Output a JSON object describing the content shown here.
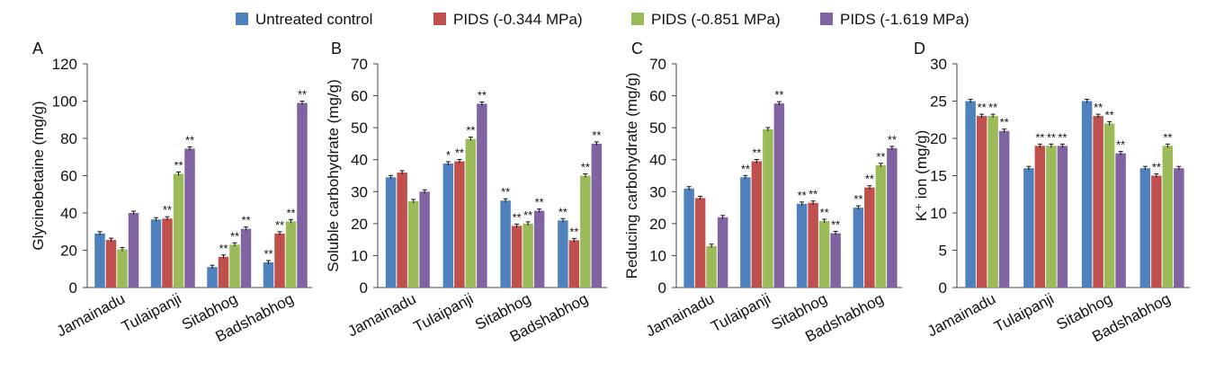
{
  "colors": [
    "#4f81bd",
    "#c0504d",
    "#9bbb59",
    "#8064a2"
  ],
  "legend": [
    "Untreated control",
    "PIDS (-0.344 MPa)",
    "PIDS (-0.851 MPa)",
    "PIDS (-1.619 MPa)"
  ],
  "chart_data": [
    {
      "type": "bar",
      "panel_label": "A",
      "ylabel": "Glycinebetaine (mg/g)",
      "ylim": [
        0,
        120
      ],
      "yticks": [
        0,
        20,
        40,
        60,
        80,
        100,
        120
      ],
      "categories": [
        "Jamainadu",
        "Tulaipanji",
        "Sitabhog",
        "Badshabhog"
      ],
      "series": [
        {
          "name": "Untreated control",
          "values": [
            29,
            36.5,
            11,
            13.5
          ]
        },
        {
          "name": "PIDS (-0.344 MPa)",
          "values": [
            25.5,
            37,
            16.5,
            29
          ]
        },
        {
          "name": "PIDS (-0.851 MPa)",
          "values": [
            20.5,
            61,
            23,
            35.5
          ]
        },
        {
          "name": "PIDS (-1.619 MPa)",
          "values": [
            40,
            74.5,
            31.5,
            99
          ]
        }
      ],
      "annotations": [
        [
          "",
          "",
          "",
          "**"
        ],
        [
          "",
          "**",
          "**",
          "**"
        ],
        [
          "",
          "**",
          "**",
          "**"
        ],
        [
          "",
          "**",
          "**",
          "**"
        ]
      ]
    },
    {
      "type": "bar",
      "panel_label": "B",
      "ylabel": "Soluble carbohydrate (mg/g)",
      "ylim": [
        0,
        70
      ],
      "yticks": [
        0,
        10,
        20,
        30,
        40,
        50,
        60,
        70
      ],
      "categories": [
        "Jamainadu",
        "Tulaipanji",
        "Sitabhog",
        "Badshabhog"
      ],
      "series": [
        {
          "name": "Untreated control",
          "values": [
            34.5,
            38.8,
            27.2,
            21
          ]
        },
        {
          "name": "PIDS (-0.344 MPa)",
          "values": [
            36,
            39.5,
            19.3,
            14.8
          ]
        },
        {
          "name": "PIDS (-0.851 MPa)",
          "values": [
            27,
            46.5,
            20,
            35
          ]
        },
        {
          "name": "PIDS (-1.619 MPa)",
          "values": [
            30,
            57.5,
            24,
            45
          ]
        }
      ],
      "annotations": [
        [
          "",
          "*",
          "**",
          "**"
        ],
        [
          "",
          "**",
          "**",
          "**"
        ],
        [
          "",
          "**",
          "**",
          "**"
        ],
        [
          "",
          "**",
          "**",
          "**"
        ]
      ]
    },
    {
      "type": "bar",
      "panel_label": "C",
      "ylabel": "Reducing carbohydrate (mg/g)",
      "ylim": [
        0,
        70
      ],
      "yticks": [
        0,
        10,
        20,
        30,
        40,
        50,
        60,
        70
      ],
      "categories": [
        "Jamainadu",
        "Tulaipanji",
        "Sitabhog",
        "Badshabhog"
      ],
      "series": [
        {
          "name": "Untreated control",
          "values": [
            31,
            34.5,
            26.2,
            25
          ]
        },
        {
          "name": "PIDS (-0.344 MPa)",
          "values": [
            28,
            39.5,
            26.5,
            31.3
          ]
        },
        {
          "name": "PIDS (-0.851 MPa)",
          "values": [
            13,
            49.5,
            20.8,
            38.3
          ]
        },
        {
          "name": "PIDS (-1.619 MPa)",
          "values": [
            22,
            57.6,
            17,
            43.6
          ]
        }
      ],
      "annotations": [
        [
          "",
          "**",
          "**",
          "**"
        ],
        [
          "",
          "**",
          "**",
          "**"
        ],
        [
          "",
          "",
          "**",
          "**"
        ],
        [
          "",
          "**",
          "**",
          "**"
        ]
      ]
    },
    {
      "type": "bar",
      "panel_label": "D",
      "ylabel": "K⁺ ion (mg/g)",
      "ylim": [
        0,
        30
      ],
      "yticks": [
        0,
        5,
        10,
        15,
        20,
        25,
        30
      ],
      "categories": [
        "Jamainadu",
        "Tulaipanji",
        "Sitabhog",
        "Badshabhog"
      ],
      "series": [
        {
          "name": "Untreated control",
          "values": [
            25,
            16,
            25,
            16
          ]
        },
        {
          "name": "PIDS (-0.344 MPa)",
          "values": [
            23,
            19,
            23,
            15
          ]
        },
        {
          "name": "PIDS (-0.851 MPa)",
          "values": [
            23,
            19,
            22,
            19
          ]
        },
        {
          "name": "PIDS (-1.619 MPa)",
          "values": [
            21,
            19,
            18,
            16
          ]
        }
      ],
      "annotations": [
        [
          "",
          "",
          "",
          ""
        ],
        [
          "**",
          "**",
          "**",
          "**"
        ],
        [
          "**",
          "**",
          "**",
          "**"
        ],
        [
          "**",
          "**",
          "**",
          ""
        ]
      ]
    }
  ]
}
